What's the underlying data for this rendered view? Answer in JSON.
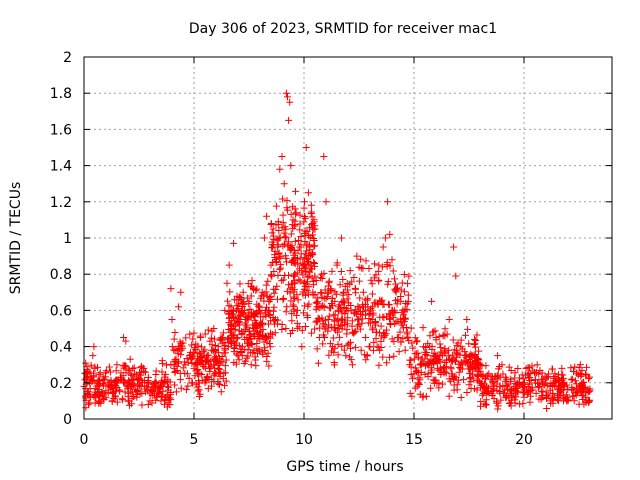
{
  "chart_data": {
    "type": "scatter",
    "title": "Day 306 of 2023, SRMTID for receiver mac1",
    "xlabel": "GPS time / hours",
    "ylabel": "SRMTID / TECUs",
    "xlim": [
      0,
      24
    ],
    "ylim": [
      0,
      2
    ],
    "x_ticks": [
      0,
      5,
      10,
      15,
      20
    ],
    "x_tick_labels": [
      "0",
      "5",
      "10",
      "15",
      "20"
    ],
    "y_ticks": [
      0,
      0.2,
      0.4,
      0.6,
      0.8,
      1,
      1.2,
      1.4,
      1.6,
      1.8,
      2
    ],
    "y_tick_labels": [
      "0",
      "0.2",
      "0.4",
      "0.6",
      "0.8",
      "1",
      "1.2",
      "1.4",
      "1.6",
      "1.8",
      "2"
    ],
    "grid": true,
    "marker": "plus",
    "color": "#ff0000",
    "series": [
      {
        "name": "mac1",
        "points": [
          [
            0.0,
            0.18
          ],
          [
            0.1,
            0.25
          ],
          [
            0.2,
            0.15
          ],
          [
            0.3,
            0.12
          ],
          [
            0.4,
            0.35
          ],
          [
            0.45,
            0.4
          ],
          [
            0.5,
            0.28
          ],
          [
            0.6,
            0.2
          ],
          [
            0.7,
            0.1
          ],
          [
            0.8,
            0.15
          ],
          [
            0.9,
            0.22
          ],
          [
            1.0,
            0.12
          ],
          [
            1.1,
            0.18
          ],
          [
            1.2,
            0.26
          ],
          [
            1.3,
            0.14
          ],
          [
            1.4,
            0.2
          ],
          [
            1.5,
            0.3
          ],
          [
            1.6,
            0.16
          ],
          [
            1.7,
            0.22
          ],
          [
            1.8,
            0.45
          ],
          [
            1.9,
            0.43
          ],
          [
            2.0,
            0.2
          ],
          [
            2.1,
            0.33
          ],
          [
            2.2,
            0.15
          ],
          [
            2.3,
            0.25
          ],
          [
            2.4,
            0.12
          ],
          [
            2.5,
            0.22
          ],
          [
            2.6,
            0.18
          ],
          [
            2.7,
            0.28
          ],
          [
            2.8,
            0.15
          ],
          [
            2.9,
            0.2
          ],
          [
            3.0,
            0.1
          ],
          [
            3.1,
            0.13
          ],
          [
            3.2,
            0.18
          ],
          [
            3.3,
            0.12
          ],
          [
            3.4,
            0.15
          ],
          [
            3.5,
            0.1
          ],
          [
            3.6,
            0.2
          ],
          [
            3.7,
            0.12
          ],
          [
            3.8,
            0.18
          ],
          [
            3.9,
            0.08
          ],
          [
            3.95,
            0.72
          ],
          [
            4.0,
            0.55
          ],
          [
            4.1,
            0.28
          ],
          [
            4.2,
            0.15
          ],
          [
            4.3,
            0.62
          ],
          [
            4.4,
            0.7
          ],
          [
            4.5,
            0.42
          ],
          [
            4.6,
            0.3
          ],
          [
            4.7,
            0.25
          ],
          [
            4.8,
            0.35
          ],
          [
            4.9,
            0.2
          ],
          [
            5.0,
            0.28
          ],
          [
            5.1,
            0.3
          ],
          [
            5.2,
            0.25
          ],
          [
            5.3,
            0.45
          ],
          [
            5.4,
            0.3
          ],
          [
            5.5,
            0.2
          ],
          [
            5.6,
            0.35
          ],
          [
            5.7,
            0.28
          ],
          [
            5.8,
            0.38
          ],
          [
            5.9,
            0.5
          ],
          [
            6.0,
            0.32
          ],
          [
            6.1,
            0.4
          ],
          [
            6.2,
            0.25
          ],
          [
            6.3,
            0.45
          ],
          [
            6.4,
            0.6
          ],
          [
            6.5,
            0.75
          ],
          [
            6.6,
            0.85
          ],
          [
            6.7,
            0.5
          ],
          [
            6.8,
            0.97
          ],
          [
            6.9,
            0.42
          ],
          [
            7.0,
            0.35
          ],
          [
            7.1,
            0.55
          ],
          [
            7.2,
            0.4
          ],
          [
            7.3,
            0.6
          ],
          [
            7.4,
            0.45
          ],
          [
            7.5,
            0.65
          ],
          [
            7.6,
            0.3
          ],
          [
            7.7,
            0.72
          ],
          [
            7.8,
            0.5
          ],
          [
            7.9,
            0.58
          ],
          [
            8.0,
            0.48
          ],
          [
            8.1,
            0.7
          ],
          [
            8.2,
            1.0
          ],
          [
            8.3,
            1.12
          ],
          [
            8.4,
            0.65
          ],
          [
            8.5,
            0.85
          ],
          [
            8.6,
            1.05
          ],
          [
            8.7,
            0.55
          ],
          [
            8.8,
            0.95
          ],
          [
            8.9,
            1.38
          ],
          [
            9.0,
            1.45
          ],
          [
            9.1,
            1.3
          ],
          [
            9.2,
            1.8
          ],
          [
            9.25,
            1.78
          ],
          [
            9.3,
            1.65
          ],
          [
            9.35,
            1.75
          ],
          [
            9.4,
            1.4
          ],
          [
            9.5,
            1.1
          ],
          [
            9.6,
            0.8
          ],
          [
            9.7,
            0.6
          ],
          [
            9.8,
            0.95
          ],
          [
            9.9,
            0.4
          ],
          [
            10.0,
            0.75
          ],
          [
            10.1,
            1.5
          ],
          [
            10.2,
            1.25
          ],
          [
            10.3,
            0.9
          ],
          [
            10.4,
            0.7
          ],
          [
            10.5,
            1.05
          ],
          [
            10.6,
            0.62
          ],
          [
            10.7,
            0.45
          ],
          [
            10.8,
            0.8
          ],
          [
            10.9,
            1.45
          ],
          [
            11.0,
            1.2
          ],
          [
            11.1,
            0.55
          ],
          [
            11.2,
            0.72
          ],
          [
            11.3,
            0.4
          ],
          [
            11.4,
            0.65
          ],
          [
            11.5,
            0.85
          ],
          [
            11.6,
            0.5
          ],
          [
            11.7,
            1.0
          ],
          [
            11.8,
            0.7
          ],
          [
            11.9,
            0.35
          ],
          [
            12.0,
            0.6
          ],
          [
            12.1,
            0.82
          ],
          [
            12.2,
            0.3
          ],
          [
            12.3,
            0.48
          ],
          [
            12.4,
            0.9
          ],
          [
            12.5,
            0.55
          ],
          [
            12.6,
            0.38
          ],
          [
            12.7,
            0.7
          ],
          [
            12.8,
            0.45
          ],
          [
            12.9,
            0.62
          ],
          [
            13.0,
            0.4
          ],
          [
            13.1,
            0.55
          ],
          [
            13.2,
            0.78
          ],
          [
            13.3,
            0.48
          ],
          [
            13.4,
            0.85
          ],
          [
            13.5,
            0.65
          ],
          [
            13.6,
            0.95
          ],
          [
            13.7,
            1.0
          ],
          [
            13.8,
            1.2
          ],
          [
            13.9,
            1.02
          ],
          [
            14.0,
            0.88
          ],
          [
            14.1,
            0.6
          ],
          [
            14.2,
            0.72
          ],
          [
            14.3,
            0.45
          ],
          [
            14.4,
            0.65
          ],
          [
            14.5,
            0.55
          ],
          [
            14.6,
            0.38
          ],
          [
            14.7,
            0.48
          ],
          [
            14.8,
            0.3
          ],
          [
            14.9,
            0.42
          ],
          [
            15.0,
            0.25
          ],
          [
            15.2,
            0.2
          ],
          [
            15.4,
            0.12
          ],
          [
            15.6,
            0.35
          ],
          [
            15.8,
            0.65
          ],
          [
            16.0,
            0.45
          ],
          [
            16.2,
            0.28
          ],
          [
            16.4,
            0.38
          ],
          [
            16.6,
            0.55
          ],
          [
            16.8,
            0.95
          ],
          [
            16.9,
            0.79
          ],
          [
            17.0,
            0.42
          ],
          [
            17.2,
            0.3
          ],
          [
            17.4,
            0.55
          ],
          [
            17.6,
            0.35
          ],
          [
            17.8,
            0.28
          ],
          [
            18.0,
            0.2
          ],
          [
            18.2,
            0.15
          ],
          [
            18.4,
            0.25
          ],
          [
            18.6,
            0.18
          ],
          [
            18.8,
            0.35
          ],
          [
            19.0,
            0.3
          ],
          [
            19.2,
            0.22
          ],
          [
            19.4,
            0.15
          ],
          [
            19.6,
            0.18
          ],
          [
            19.8,
            0.2
          ],
          [
            20.0,
            0.12
          ],
          [
            20.2,
            0.25
          ],
          [
            20.4,
            0.16
          ],
          [
            20.6,
            0.3
          ],
          [
            20.8,
            0.22
          ],
          [
            21.0,
            0.15
          ],
          [
            21.2,
            0.1
          ],
          [
            21.4,
            0.2
          ],
          [
            21.6,
            0.13
          ],
          [
            21.8,
            0.18
          ],
          [
            22.0,
            0.1
          ],
          [
            22.2,
            0.22
          ],
          [
            22.4,
            0.15
          ],
          [
            22.6,
            0.18
          ],
          [
            22.8,
            0.12
          ]
        ]
      }
    ],
    "background_density_bands": [
      {
        "x_range": [
          0,
          4
        ],
        "y_range": [
          0.08,
          0.3
        ],
        "count": 260
      },
      {
        "x_range": [
          4,
          6.5
        ],
        "y_range": [
          0.15,
          0.45
        ],
        "count": 180
      },
      {
        "x_range": [
          6.5,
          8.5
        ],
        "y_range": [
          0.3,
          0.7
        ],
        "count": 240
      },
      {
        "x_range": [
          8.5,
          10.5
        ],
        "y_range": [
          0.45,
          1.1
        ],
        "count": 260
      },
      {
        "x_range": [
          10.5,
          14.8
        ],
        "y_range": [
          0.3,
          0.8
        ],
        "count": 320
      },
      {
        "x_range": [
          14.8,
          18
        ],
        "y_range": [
          0.12,
          0.45
        ],
        "count": 240
      },
      {
        "x_range": [
          18,
          23
        ],
        "y_range": [
          0.08,
          0.28
        ],
        "count": 320
      }
    ]
  }
}
